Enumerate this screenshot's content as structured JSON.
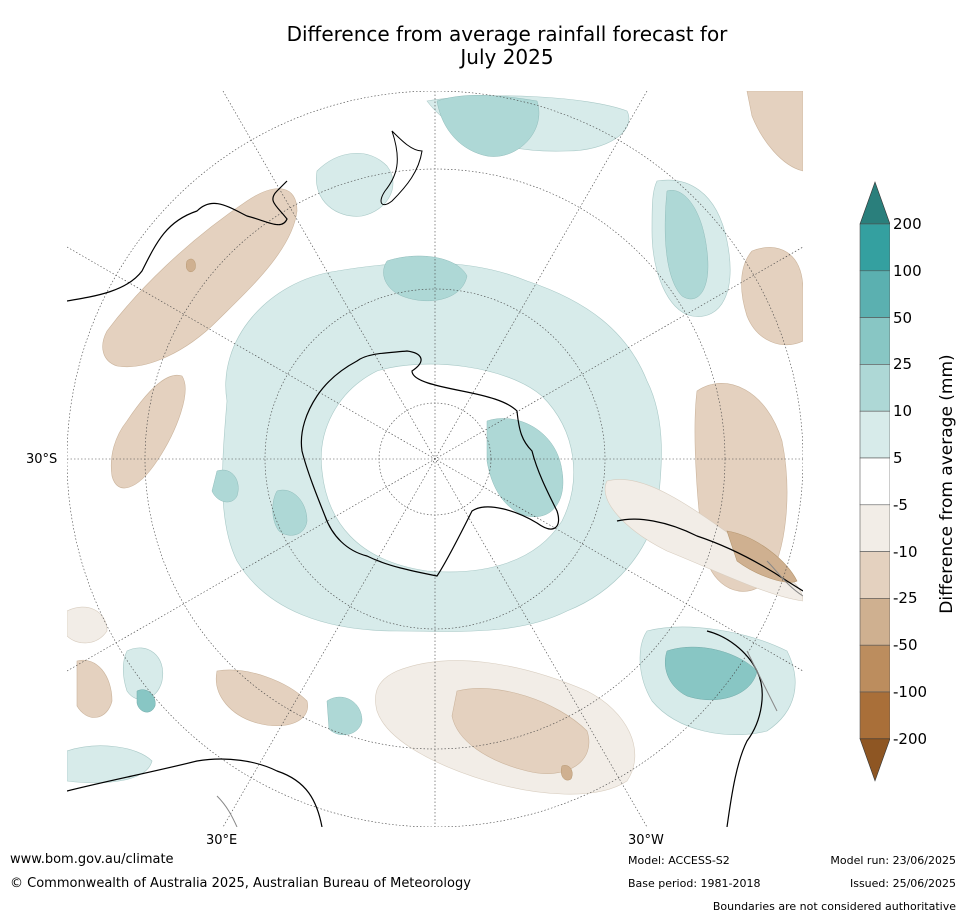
{
  "title": {
    "line1": "Difference from average rainfall forecast for",
    "line2": "July 2025"
  },
  "map": {
    "projection": "south-polar-stereographic",
    "labels": {
      "lat_30s": "30°S",
      "lon_30e": "30°E",
      "lon_30w": "30°W"
    }
  },
  "colorbar": {
    "title": "Difference from average (mm)",
    "ticks": [
      "200",
      "100",
      "50",
      "25",
      "10",
      "5",
      "-5",
      "-10",
      "-25",
      "-50",
      "-100",
      "-200"
    ],
    "colors": [
      "#2a7f7c",
      "#34a0a0",
      "#5bb0b0",
      "#88c6c4",
      "#aed8d6",
      "#d7ebea",
      "#ffffff",
      "#f2ede7",
      "#e4d1bf",
      "#cfb090",
      "#bc8d5e",
      "#a96f39",
      "#8e5623"
    ],
    "over_color": "#2a7f7c",
    "under_color": "#8e5623"
  },
  "footer": {
    "website": "www.bom.gov.au/climate",
    "copyright": "© Commonwealth of Australia 2025, Australian Bureau of Meteorology",
    "model": "Model: ACCESS-S2",
    "base_period": "Base period: 1981-2018",
    "model_run": "Model run: 23/06/2025",
    "issued": "Issued: 25/06/2025",
    "disclaimer": "Boundaries are not considered authoritative"
  }
}
